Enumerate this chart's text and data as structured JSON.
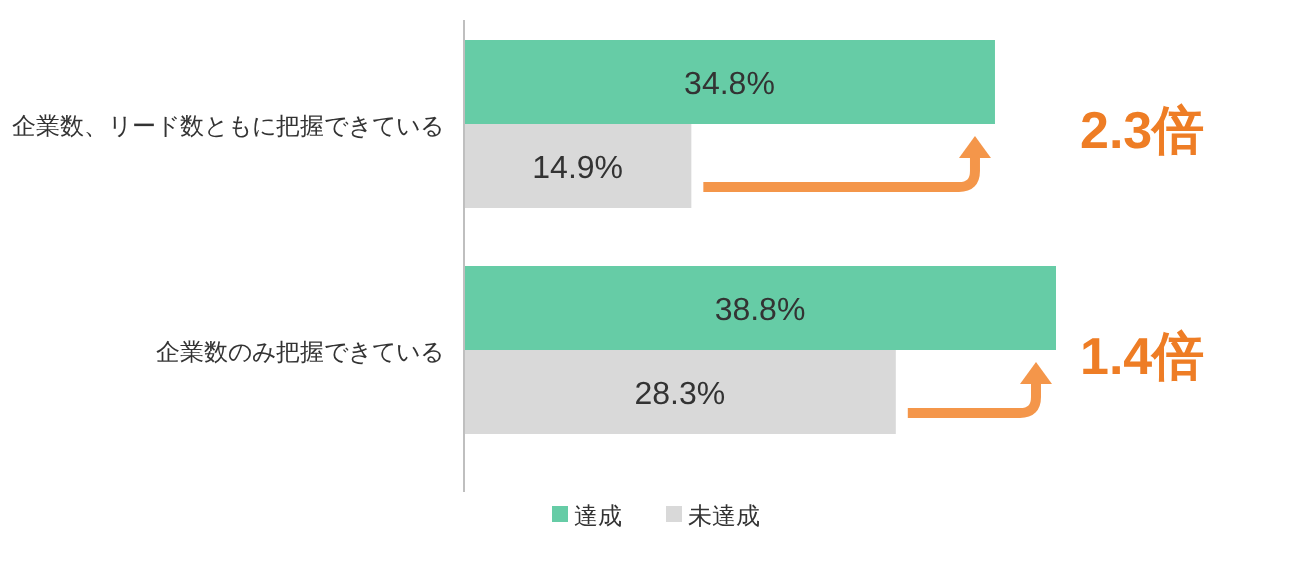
{
  "chart_data": {
    "type": "bar",
    "orientation": "horizontal",
    "categories": [
      "企業数、リード数ともに把握できている",
      "企業数のみ把握できている"
    ],
    "series": [
      {
        "name": "達成",
        "color": "#66cca6",
        "values": [
          34.8,
          38.8
        ],
        "value_labels": [
          "34.8%",
          "38.8%"
        ]
      },
      {
        "name": "未達成",
        "color": "#d9d9d9",
        "values": [
          14.9,
          28.3
        ],
        "value_labels": [
          "14.9%",
          "28.3%"
        ]
      }
    ],
    "legend": "bottom",
    "annotations": [
      "2.3倍",
      "1.4倍"
    ]
  }
}
